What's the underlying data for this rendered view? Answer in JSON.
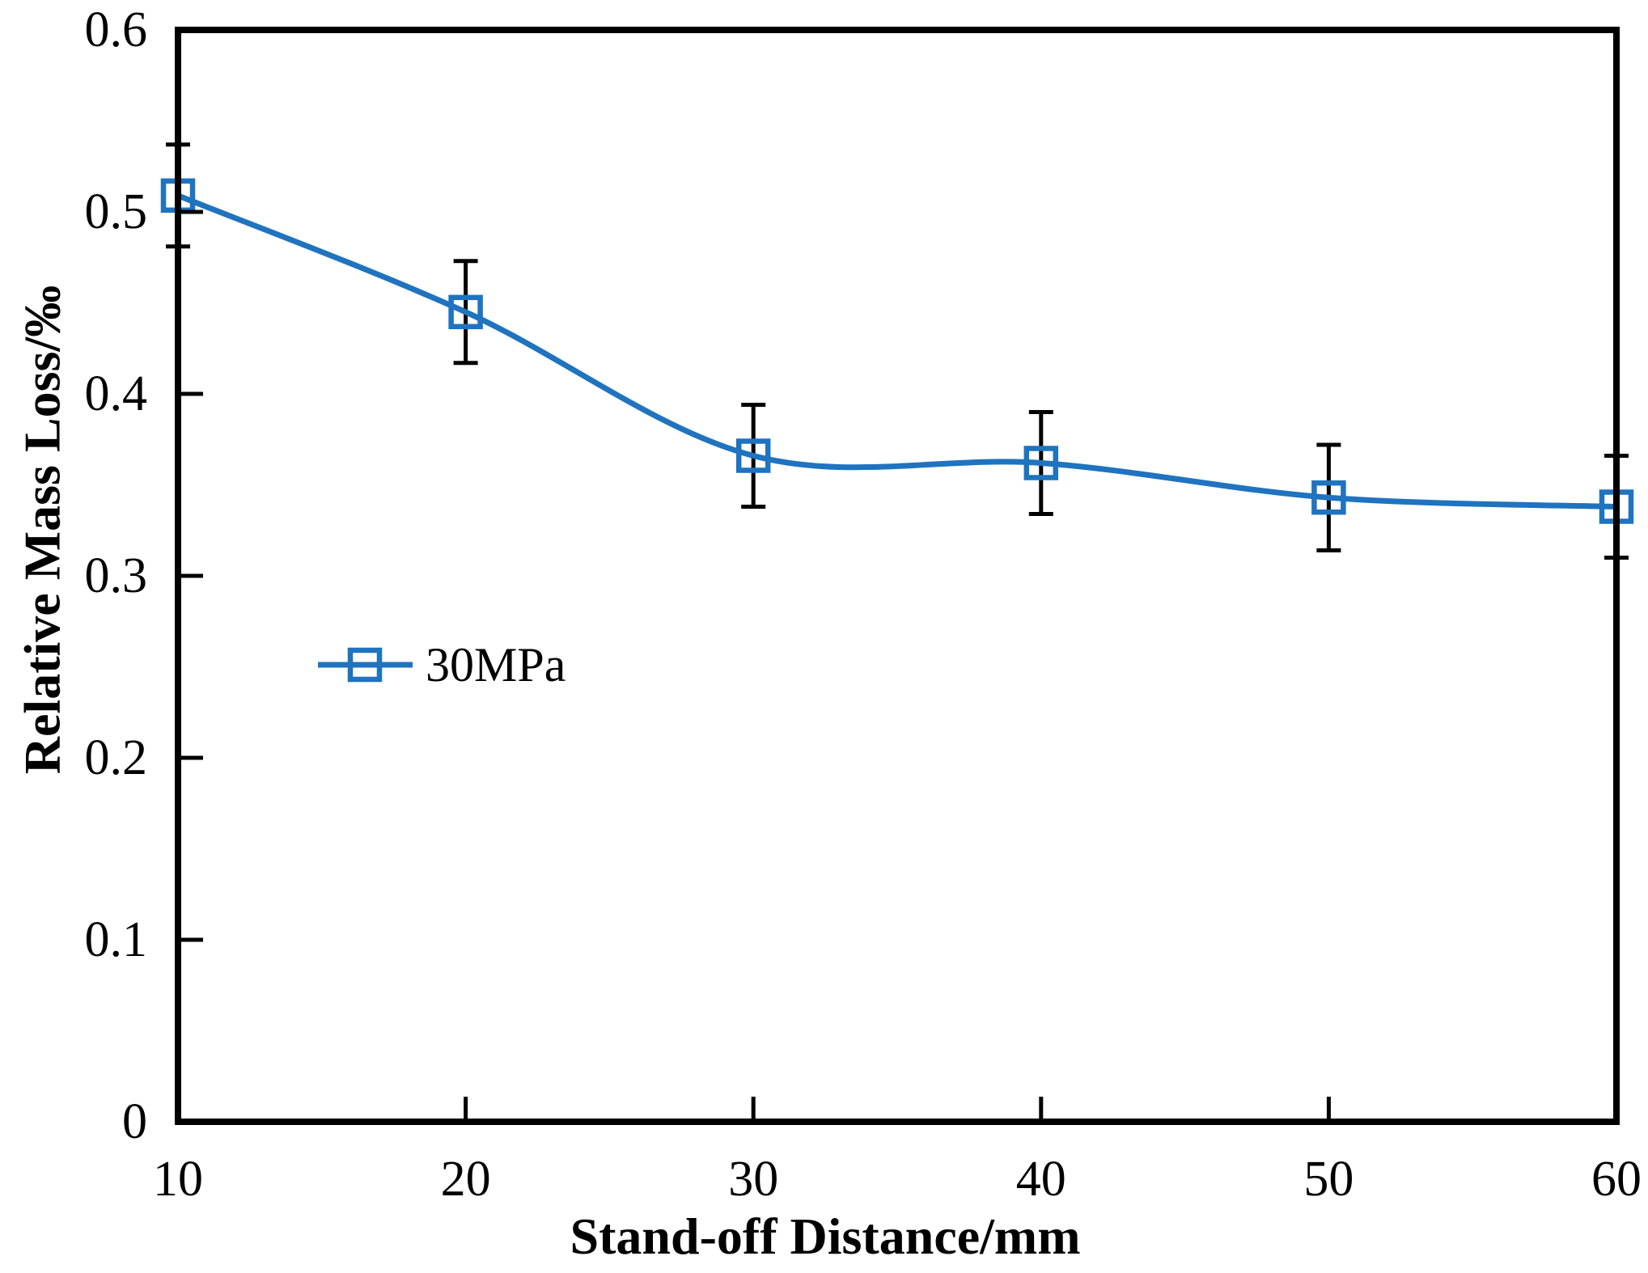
{
  "figure": {
    "background_color": "#ffffff",
    "description": "Line chart of relative mass loss versus stand-off distance for 30MPa"
  },
  "chart_data": {
    "type": "line",
    "title": "",
    "xlabel": "Stand-off Distance/mm",
    "ylabel": "Relative Mass Loss/‰",
    "xlim": [
      10,
      60
    ],
    "ylim": [
      0,
      0.6
    ],
    "x_ticks": [
      10,
      20,
      30,
      40,
      50,
      60
    ],
    "x_tick_labels": [
      "10",
      "20",
      "30",
      "40",
      "50",
      "60"
    ],
    "y_ticks": [
      0,
      0.1,
      0.2,
      0.3,
      0.4,
      0.5,
      0.6
    ],
    "y_tick_labels": [
      "0",
      "0.1",
      "0.2",
      "0.3",
      "0.4",
      "0.5",
      "0.6"
    ],
    "grid": false,
    "frame": "full-box",
    "legend": {
      "position": "inside-left-middle",
      "entries": [
        {
          "label": "30MPa",
          "marker": "open-square",
          "color": "#1f73bf"
        }
      ]
    },
    "series": [
      {
        "name": "30MPa",
        "x": [
          10,
          20,
          30,
          40,
          50,
          60
        ],
        "y": [
          0.509,
          0.445,
          0.366,
          0.362,
          0.343,
          0.338
        ],
        "y_err": [
          0.028,
          0.028,
          0.028,
          0.028,
          0.029,
          0.028
        ],
        "line_color": "#1f73bf",
        "line_style": "smooth",
        "marker": "open-square",
        "marker_fill": "none",
        "error_bar_color": "#000000"
      }
    ],
    "colors": {
      "axis": "#000000",
      "text": "#000000",
      "series_blue": "#1f73bf"
    }
  }
}
